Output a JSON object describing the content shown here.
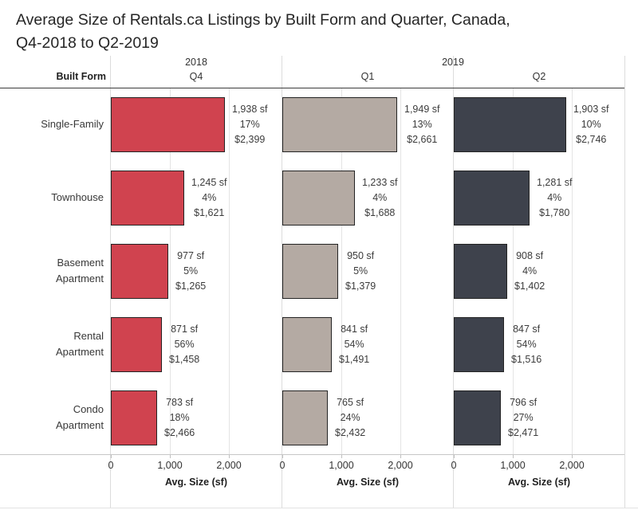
{
  "title": {
    "line1": "Average Size of Rentals.ca Listings by Built Form and Quarter, Canada,",
    "line2": "Q4-2018 to Q2-2019"
  },
  "header": {
    "built_form_label": "Built Form",
    "year_2018": "2018",
    "year_2019": "2019"
  },
  "row_labels": [
    "Single-Family",
    "Townhouse",
    "Basement Apartment",
    "Rental Apartment",
    "Condo Apartment"
  ],
  "axis": {
    "tick_labels": [
      "0",
      "1,000",
      "2,000"
    ],
    "tick_values": [
      0,
      1000,
      2000
    ],
    "title": "Avg. Size (sf)",
    "max_value": 2000
  },
  "colors": {
    "q4_bar": "#d0434f",
    "q1_bar": "#b4aaa3",
    "q2_bar": "#3e424c",
    "bar_border": "#242424"
  },
  "panels": [
    {
      "quarter": "Q4",
      "bar_color": "#d0434f",
      "bars": [
        {
          "sf": "1,938 sf",
          "pct": "17%",
          "rent": "$2,399",
          "value": 1938
        },
        {
          "sf": "1,245 sf",
          "pct": "4%",
          "rent": "$1,621",
          "value": 1245
        },
        {
          "sf": "977 sf",
          "pct": "5%",
          "rent": "$1,265",
          "value": 977
        },
        {
          "sf": "871 sf",
          "pct": "56%",
          "rent": "$1,458",
          "value": 871
        },
        {
          "sf": "783 sf",
          "pct": "18%",
          "rent": "$2,466",
          "value": 783
        }
      ]
    },
    {
      "quarter": "Q1",
      "bar_color": "#b4aaa3",
      "bars": [
        {
          "sf": "1,949 sf",
          "pct": "13%",
          "rent": "$2,661",
          "value": 1949
        },
        {
          "sf": "1,233 sf",
          "pct": "4%",
          "rent": "$1,688",
          "value": 1233
        },
        {
          "sf": "950 sf",
          "pct": "5%",
          "rent": "$1,379",
          "value": 950
        },
        {
          "sf": "841 sf",
          "pct": "54%",
          "rent": "$1,491",
          "value": 841
        },
        {
          "sf": "765 sf",
          "pct": "24%",
          "rent": "$2,432",
          "value": 765
        }
      ]
    },
    {
      "quarter": "Q2",
      "bar_color": "#3e424c",
      "bars": [
        {
          "sf": "1,903 sf",
          "pct": "10%",
          "rent": "$2,746",
          "value": 1903
        },
        {
          "sf": "1,281 sf",
          "pct": "4%",
          "rent": "$1,780",
          "value": 1281
        },
        {
          "sf": "908 sf",
          "pct": "4%",
          "rent": "$1,402",
          "value": 908
        },
        {
          "sf": "847 sf",
          "pct": "54%",
          "rent": "$1,516",
          "value": 847
        },
        {
          "sf": "796 sf",
          "pct": "27%",
          "rent": "$2,471",
          "value": 796
        }
      ]
    }
  ],
  "chart_data": {
    "type": "bar",
    "orientation": "horizontal",
    "title": "Average Size of Rentals.ca Listings by Built Form and Quarter, Canada, Q4-2018 to Q2-2019",
    "categories": [
      "Single-Family",
      "Townhouse",
      "Basement Apartment",
      "Rental Apartment",
      "Condo Apartment"
    ],
    "xlabel": "Avg. Size (sf)",
    "axis_ticks": [
      0,
      1000,
      2000
    ],
    "grid": true,
    "legend_position": "column-headers",
    "series": [
      {
        "name": "2018 Q4",
        "color": "#d0434f",
        "avg_size_sf": [
          1938,
          1245,
          977,
          871,
          783
        ],
        "percent": [
          17,
          4,
          5,
          56,
          18
        ],
        "avg_rent_dollars": [
          2399,
          1621,
          1265,
          1458,
          2466
        ]
      },
      {
        "name": "2019 Q1",
        "color": "#b4aaa3",
        "avg_size_sf": [
          1949,
          1233,
          950,
          841,
          765
        ],
        "percent": [
          13,
          4,
          5,
          54,
          24
        ],
        "avg_rent_dollars": [
          2661,
          1688,
          1379,
          1491,
          2432
        ]
      },
      {
        "name": "2019 Q2",
        "color": "#3e424c",
        "avg_size_sf": [
          1903,
          1281,
          908,
          847,
          796
        ],
        "percent": [
          10,
          4,
          4,
          54,
          27
        ],
        "avg_rent_dollars": [
          2746,
          1780,
          1402,
          1516,
          2471
        ]
      }
    ]
  }
}
